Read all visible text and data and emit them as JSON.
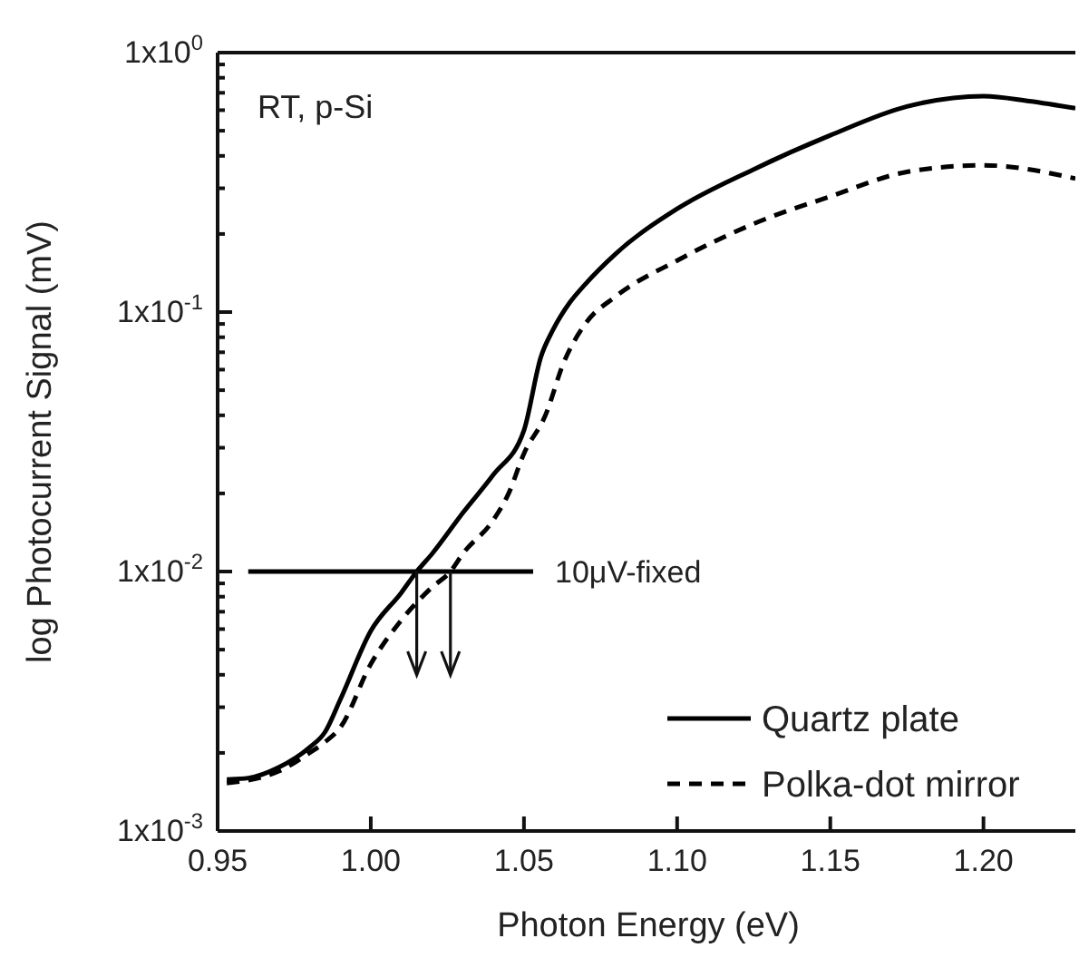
{
  "chart_data": {
    "type": "line",
    "xlabel": "Photon Energy (eV)",
    "ylabel": "log Photocurrent Signal (mV)",
    "log": "y",
    "xlim": [
      0.95,
      1.23
    ],
    "ylim": [
      0.001,
      1
    ],
    "xticks": [
      0.95,
      {
        "value": 1.0,
        "label": "1.00"
      },
      1.05,
      {
        "value": 1.1,
        "label": "1.10"
      },
      1.15,
      {
        "value": 1.2,
        "label": "1.20"
      }
    ],
    "yticks": [
      {
        "value": 0.001,
        "label": "1x10$^{-3}$"
      },
      {
        "value": 0.002,
        "label": null
      },
      {
        "value": 0.003,
        "label": null
      },
      {
        "value": 0.004,
        "label": null
      },
      {
        "value": 0.005,
        "label": null
      },
      {
        "value": 0.006,
        "label": null
      },
      {
        "value": 0.007,
        "label": null
      },
      {
        "value": 0.008,
        "label": null
      },
      {
        "value": 0.009,
        "label": null
      },
      {
        "value": 0.01,
        "label": "1x10$^{-2}$"
      },
      {
        "value": 0.02,
        "label": null
      },
      {
        "value": 0.03,
        "label": null
      },
      {
        "value": 0.04,
        "label": null
      },
      {
        "value": 0.05,
        "label": null
      },
      {
        "value": 0.06,
        "label": null
      },
      {
        "value": 0.07,
        "label": null
      },
      {
        "value": 0.08,
        "label": null
      },
      {
        "value": 0.09,
        "label": null
      },
      {
        "value": 0.1,
        "label": "1x10$^{-1}$"
      },
      {
        "value": 0.2,
        "label": null
      },
      {
        "value": 0.3,
        "label": null
      },
      {
        "value": 0.4,
        "label": null
      },
      {
        "value": 0.5,
        "label": null
      },
      {
        "value": 0.6,
        "label": null
      },
      {
        "value": 0.7,
        "label": null
      },
      {
        "value": 0.8,
        "label": null
      },
      {
        "value": 0.9,
        "label": null
      },
      {
        "value": 1,
        "label": "1x10$^{0}$"
      }
    ],
    "grid": false,
    "legend": "bottom right",
    "marker": "none",
    "annotations": [
      "RT, p-Si",
      "10μV-fixed"
    ],
    "series": [
      {
        "name": "Quartz plate",
        "color": "#000000",
        "line_style": "solid",
        "x": [
          0.953,
          0.96,
          0.97,
          0.98,
          0.985,
          0.99,
          1.0,
          1.01,
          1.015,
          1.02,
          1.03,
          1.04,
          1.05,
          1.0555,
          1.0595,
          1.065,
          1.07,
          1.08,
          1.1,
          1.125,
          1.15,
          1.175,
          1.2,
          1.215,
          1.23
        ],
        "values": [
          0.00158,
          0.0016,
          0.00176,
          0.0021,
          0.0024,
          0.0032,
          0.0059,
          0.0083,
          0.01,
          0.0117,
          0.0168,
          0.0236,
          0.035,
          0.067,
          0.0855,
          0.109,
          0.128,
          0.168,
          0.25,
          0.355,
          0.48,
          0.62,
          0.68,
          0.65,
          0.61
        ]
      },
      {
        "name": "Polka-dot mirror",
        "color": "#000000",
        "line_style": "dashed",
        "x": [
          0.953,
          0.97,
          0.98,
          0.985,
          0.99,
          1.0,
          1.01,
          1.02,
          1.026,
          1.03,
          1.04,
          1.045,
          1.05,
          1.057,
          1.063,
          1.07,
          1.08,
          1.1,
          1.125,
          1.15,
          1.175,
          1.2,
          1.23
        ],
        "values": [
          0.00153,
          0.0017,
          0.002,
          0.0022,
          0.0025,
          0.0044,
          0.0065,
          0.0087,
          0.01,
          0.0117,
          0.0158,
          0.02,
          0.0285,
          0.04,
          0.064,
          0.09,
          0.115,
          0.158,
          0.219,
          0.279,
          0.347,
          0.368,
          0.327
        ]
      },
      {
        "type": "line",
        "color": "#000000",
        "line_style": "solid",
        "x": [
          0.96,
          1.053
        ],
        "values": [
          0.01,
          0.01
        ]
      }
    ]
  }
}
